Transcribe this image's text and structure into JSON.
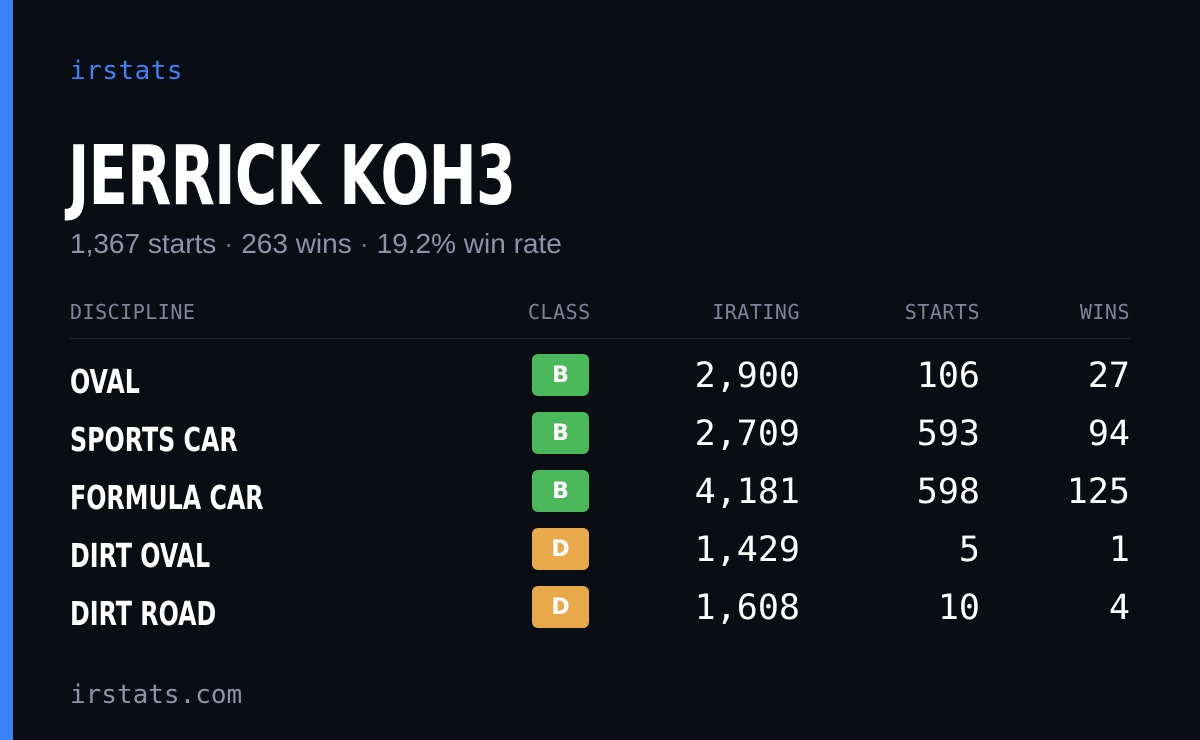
{
  "brand": "irstats",
  "driver": {
    "name": "JERRICK KOH3",
    "starts": "1,367 starts",
    "wins": "263 wins",
    "win_rate": "19.2% win rate",
    "separator": " · "
  },
  "table": {
    "headers": {
      "discipline": "DISCIPLINE",
      "class": "CLASS",
      "irating": "IRATING",
      "starts": "STARTS",
      "wins": "WINS"
    },
    "rows": [
      {
        "discipline": "OVAL",
        "class": "B",
        "irating": "2,900",
        "starts": "106",
        "wins": "27"
      },
      {
        "discipline": "SPORTS CAR",
        "class": "B",
        "irating": "2,709",
        "starts": "593",
        "wins": "94"
      },
      {
        "discipline": "FORMULA CAR",
        "class": "B",
        "irating": "4,181",
        "starts": "598",
        "wins": "125"
      },
      {
        "discipline": "DIRT OVAL",
        "class": "D",
        "irating": "1,429",
        "starts": "5",
        "wins": "1"
      },
      {
        "discipline": "DIRT ROAD",
        "class": "D",
        "irating": "1,608",
        "starts": "10",
        "wins": "4"
      }
    ]
  },
  "footer": "irstats.com",
  "colors": {
    "accent": "#3b82f6",
    "background": "#0b0d14",
    "class_B": "#4cb85c",
    "class_D": "#e8a94b"
  }
}
